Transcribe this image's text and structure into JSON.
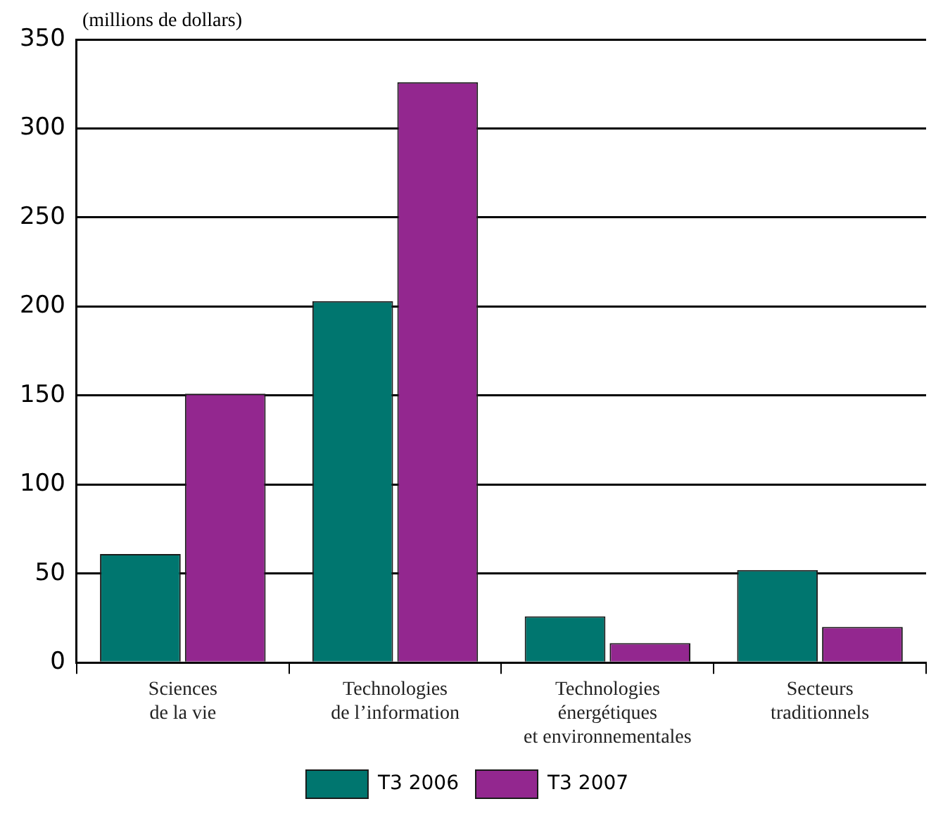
{
  "chart_data": {
    "type": "bar",
    "ylabel": "(millions de dollars)",
    "categories": [
      "Sciences\nde la vie",
      "Technologies\nde l’information",
      "Technologies\nénergétiques\net environnementales",
      "Secteurs\ntraditionnels"
    ],
    "series": [
      {
        "name": "T3 2006",
        "color": "#00766f",
        "values": [
          61,
          203,
          26,
          52
        ]
      },
      {
        "name": "T3 2007",
        "color": "#93278f",
        "values": [
          151,
          326,
          11,
          20
        ]
      }
    ],
    "ylim": [
      0,
      350
    ],
    "yticks": [
      0,
      50,
      100,
      150,
      200,
      250,
      300,
      350
    ],
    "grid": "y",
    "legend": "bottom"
  }
}
